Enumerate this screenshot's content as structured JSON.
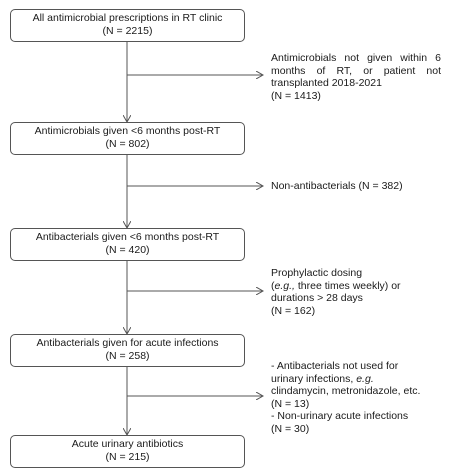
{
  "colors": {
    "line": "#555555",
    "border": "#555555",
    "text": "#1a1a1a"
  },
  "boxes": [
    {
      "label": "All antimicrobial prescriptions in RT clinic",
      "count": "(N = 2215)"
    },
    {
      "label": "Antimicrobials given <6 months post-RT",
      "count": "(N = 802)"
    },
    {
      "label": "Antibacterials given <6 months post-RT",
      "count": "(N = 420)"
    },
    {
      "label": "Antibacterials given for acute infections",
      "count": "(N = 258)"
    },
    {
      "label": "Acute urinary antibiotics",
      "count": "(N = 215)"
    }
  ],
  "exclusions": [
    {
      "lines": [
        "Antimicrobials not given within 6",
        "months of RT, or patient not",
        "transplanted 2018-2021"
      ],
      "count": "(N = 1413)"
    },
    {
      "lines": [
        "Non-antibacterials (N = 382)"
      ]
    },
    {
      "lines": [
        "Prophylactic dosing",
        "(e.g., three times weekly) or",
        "durations > 28 days"
      ],
      "count": "(N = 162)"
    },
    {
      "lines": [
        "- Antibacterials not used for",
        "urinary infections, e.g.",
        "clindamycin, metronidazole, etc.",
        "(N = 13)",
        "- Non-urinary acute infections",
        "(N = 30)"
      ]
    }
  ]
}
